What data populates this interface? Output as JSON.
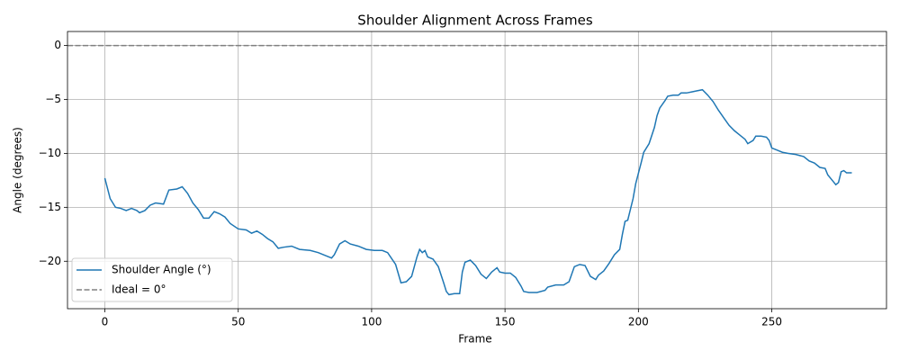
{
  "chart_data": {
    "type": "line",
    "title": "Shoulder Alignment Across Frames",
    "x_label": "Frame",
    "y_label": "Angle (degrees)",
    "x": [
      0,
      2,
      4,
      6,
      8,
      10,
      12,
      13,
      15,
      17,
      19,
      22,
      24,
      27,
      29,
      31,
      33,
      35,
      37,
      39,
      41,
      43,
      45,
      47,
      50,
      53,
      55,
      57,
      59,
      61,
      63,
      65,
      67,
      70,
      73,
      77,
      80,
      83,
      85,
      86,
      88,
      90,
      92,
      95,
      98,
      101,
      104,
      106,
      109,
      111,
      113,
      115,
      117,
      118,
      119,
      120,
      121,
      123,
      125,
      127,
      128,
      129,
      131,
      133,
      134,
      135,
      137,
      139,
      141,
      143,
      145,
      147,
      148,
      150,
      152,
      154,
      156,
      157,
      159,
      162,
      165,
      166,
      169,
      172,
      174,
      176,
      178,
      180,
      182,
      184,
      185,
      187,
      189,
      191,
      193,
      194,
      195,
      196,
      198,
      199,
      201,
      202,
      204,
      206,
      207,
      208,
      210,
      211,
      213,
      215,
      216,
      218,
      220,
      222,
      224,
      226,
      228,
      230,
      232,
      234,
      236,
      238,
      240,
      241,
      243,
      244,
      246,
      248,
      249,
      250,
      252,
      254,
      256,
      259,
      262,
      264,
      266,
      268,
      270,
      271,
      273,
      274,
      275,
      276,
      277,
      278,
      280
    ],
    "series": [
      {
        "name": "Shoulder Angle (°)",
        "color": "#1f77b4",
        "values": [
          -12.3,
          -14.2,
          -15.0,
          -15.1,
          -15.3,
          -15.1,
          -15.3,
          -15.5,
          -15.3,
          -14.8,
          -14.6,
          -14.7,
          -13.4,
          -13.3,
          -13.1,
          -13.7,
          -14.6,
          -15.2,
          -16.0,
          -16.0,
          -15.4,
          -15.6,
          -15.9,
          -16.5,
          -17.0,
          -17.1,
          -17.4,
          -17.2,
          -17.5,
          -17.9,
          -18.2,
          -18.8,
          -18.7,
          -18.6,
          -18.9,
          -19.0,
          -19.2,
          -19.5,
          -19.7,
          -19.4,
          -18.4,
          -18.1,
          -18.4,
          -18.6,
          -18.9,
          -19.0,
          -19.0,
          -19.2,
          -20.3,
          -22.0,
          -21.9,
          -21.4,
          -19.6,
          -18.9,
          -19.2,
          -19.0,
          -19.6,
          -19.8,
          -20.5,
          -22.0,
          -22.8,
          -23.1,
          -23.0,
          -23.0,
          -21.0,
          -20.1,
          -19.9,
          -20.4,
          -21.2,
          -21.6,
          -21.0,
          -20.6,
          -21.0,
          -21.1,
          -21.1,
          -21.5,
          -22.3,
          -22.8,
          -22.9,
          -22.9,
          -22.7,
          -22.4,
          -22.2,
          -22.2,
          -21.9,
          -20.5,
          -20.3,
          -20.4,
          -21.4,
          -21.7,
          -21.3,
          -20.9,
          -20.2,
          -19.4,
          -18.9,
          -17.5,
          -16.3,
          -16.2,
          -14.2,
          -12.8,
          -10.9,
          -9.9,
          -9.1,
          -7.6,
          -6.5,
          -5.8,
          -5.1,
          -4.7,
          -4.6,
          -4.6,
          -4.4,
          -4.4,
          -4.3,
          -4.2,
          -4.1,
          -4.6,
          -5.2,
          -6.0,
          -6.7,
          -7.4,
          -7.9,
          -8.3,
          -8.7,
          -9.1,
          -8.8,
          -8.4,
          -8.4,
          -8.5,
          -8.8,
          -9.5,
          -9.7,
          -9.9,
          -10.0,
          -10.1,
          -10.3,
          -10.7,
          -10.9,
          -11.3,
          -11.4,
          -12.0,
          -12.6,
          -12.9,
          -12.7,
          -11.7,
          -11.6,
          -11.8,
          -11.8
        ]
      }
    ],
    "reference_lines": [
      {
        "name": "Ideal = 0°",
        "value": 0,
        "color": "#808080",
        "style": "dashed"
      }
    ],
    "xlim": [
      -14,
      293
    ],
    "ylim": [
      -24.4,
      1.3
    ],
    "xticks": [
      0,
      50,
      100,
      150,
      200,
      250
    ],
    "yticks": [
      0,
      {
        "value": -5,
        "label": "−5"
      },
      {
        "value": -10,
        "label": "−10"
      },
      {
        "value": -15,
        "label": "−15"
      },
      {
        "value": -20,
        "label": "−20"
      }
    ],
    "grid": true,
    "legend": "lower left"
  }
}
